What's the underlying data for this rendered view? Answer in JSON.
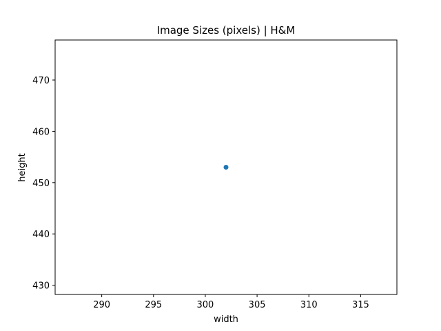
{
  "chart_data": {
    "type": "scatter",
    "title": "Image Sizes (pixels) | H&M",
    "xlabel": "width",
    "ylabel": "height",
    "xlim": [
      285.5,
      318.5
    ],
    "ylim": [
      428.2,
      477.8
    ],
    "xticks": [
      290,
      295,
      300,
      305,
      310,
      315
    ],
    "yticks": [
      430,
      440,
      450,
      460,
      470
    ],
    "points": [
      {
        "x": 302,
        "y": 453
      }
    ],
    "marker_color": "#1f77b4",
    "grid": false,
    "legend": false
  }
}
